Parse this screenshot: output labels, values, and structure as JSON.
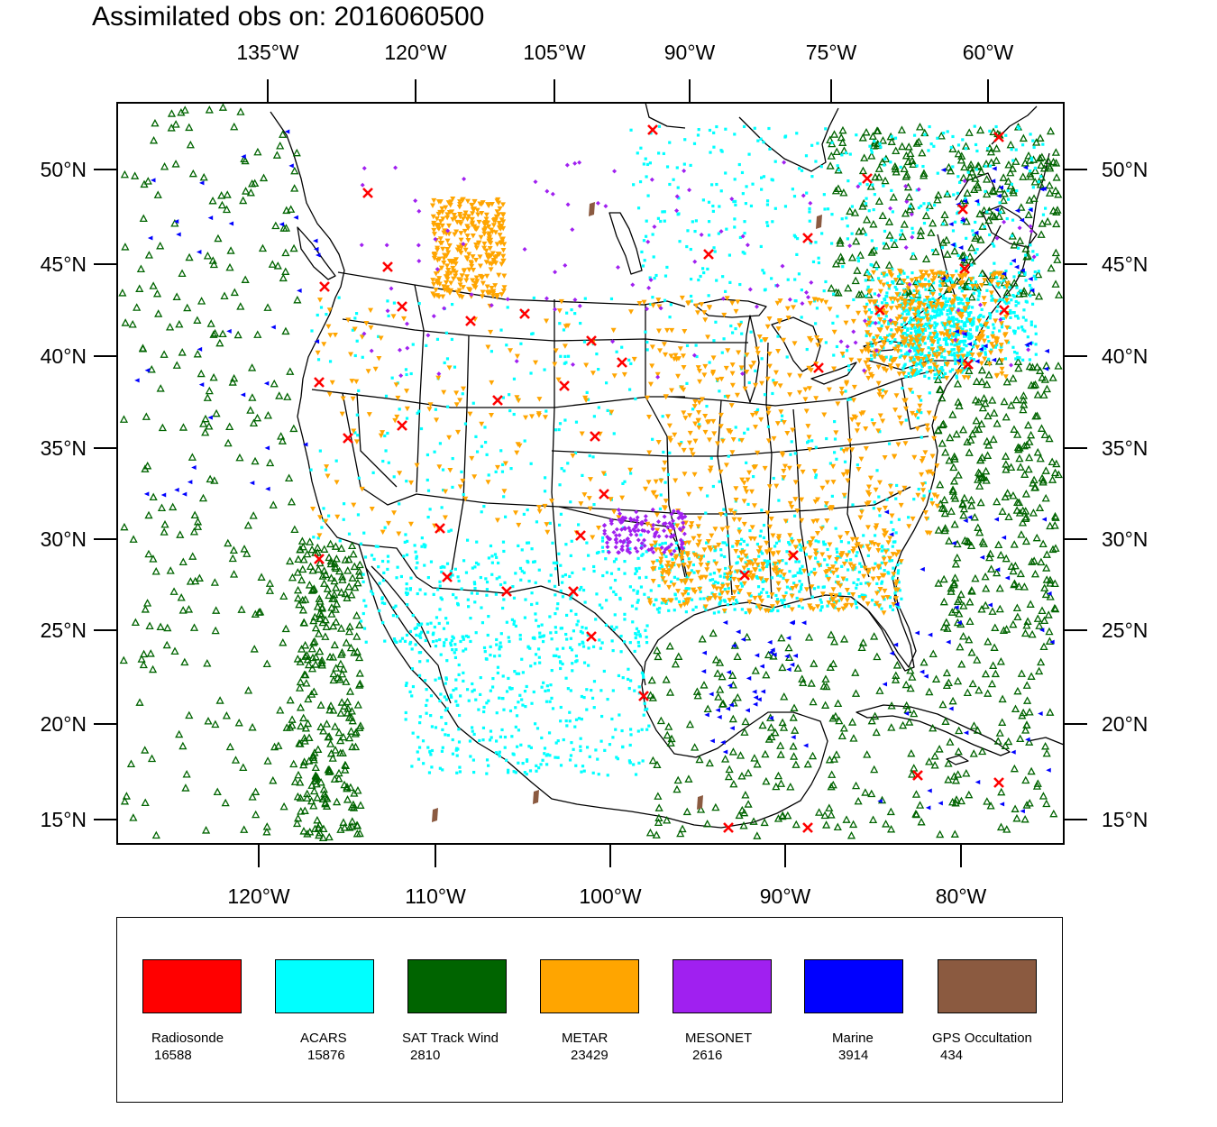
{
  "title": "Assimilated obs on: 2016060500",
  "map": {
    "top_lon_labels": [
      "135°W",
      "120°W",
      "105°W",
      "90°W",
      "75°W",
      "60°W"
    ],
    "bottom_lon_labels": [
      "120°W",
      "110°W",
      "100°W",
      "90°W",
      "80°W"
    ],
    "lat_labels": [
      "50°N",
      "45°N",
      "40°N",
      "35°N",
      "30°N",
      "25°N",
      "20°N",
      "15°N"
    ],
    "lat_range": [
      13.7,
      53.8
    ],
    "lon_range": [
      -130,
      -74
    ]
  },
  "legend": {
    "items": [
      {
        "name": "Radiosonde",
        "count": "16588",
        "color": "#ff0000",
        "marker": "x-cross-icon"
      },
      {
        "name": "ACARS",
        "count": "15876",
        "color": "#00ffff",
        "marker": "square-dot-icon"
      },
      {
        "name": "SAT Track Wind",
        "count": "2810",
        "color": "#006400",
        "marker": "triangle-up-outline-icon"
      },
      {
        "name": "METAR",
        "count": "23429",
        "color": "#ffa500",
        "marker": "triangle-down-icon"
      },
      {
        "name": "MESONET",
        "count": "2616",
        "color": "#a020f0",
        "marker": "diamond-icon"
      },
      {
        "name": "Marine",
        "count": "3914",
        "color": "#0000ff",
        "marker": "triangle-left-icon"
      },
      {
        "name": "GPS Occultation",
        "count": "434",
        "color": "#8b5a40",
        "marker": "parallelogram-icon"
      }
    ]
  }
}
